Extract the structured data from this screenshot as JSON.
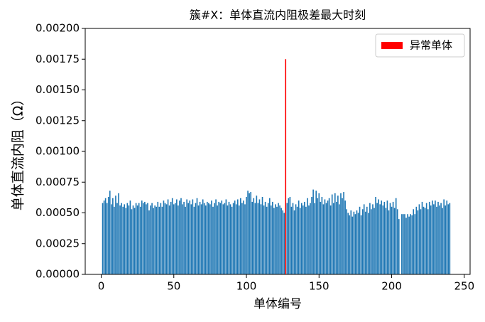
{
  "chart_data": {
    "type": "bar",
    "title": "簇#X：单体直流内阻极差最大时刻",
    "x_label": "单体编号",
    "y_label": "单体直流内阻（Ω）",
    "x": [
      1,
      2,
      3,
      4,
      5,
      6,
      7,
      8,
      9,
      10,
      11,
      12,
      13,
      14,
      15,
      16,
      17,
      18,
      19,
      20,
      21,
      22,
      23,
      24,
      25,
      26,
      27,
      28,
      29,
      30,
      31,
      32,
      33,
      34,
      35,
      36,
      37,
      38,
      39,
      40,
      41,
      42,
      43,
      44,
      45,
      46,
      47,
      48,
      49,
      50,
      51,
      52,
      53,
      54,
      55,
      56,
      57,
      58,
      59,
      60,
      61,
      62,
      63,
      64,
      65,
      66,
      67,
      68,
      69,
      70,
      71,
      72,
      73,
      74,
      75,
      76,
      77,
      78,
      79,
      80,
      81,
      82,
      83,
      84,
      85,
      86,
      87,
      88,
      89,
      90,
      91,
      92,
      93,
      94,
      95,
      96,
      97,
      98,
      99,
      100,
      101,
      102,
      103,
      104,
      105,
      106,
      107,
      108,
      109,
      110,
      111,
      112,
      113,
      114,
      115,
      116,
      117,
      118,
      119,
      120,
      121,
      122,
      123,
      124,
      125,
      126,
      127,
      128,
      129,
      130,
      131,
      132,
      133,
      134,
      135,
      136,
      137,
      138,
      139,
      140,
      141,
      142,
      143,
      144,
      145,
      146,
      147,
      148,
      149,
      150,
      151,
      152,
      153,
      154,
      155,
      156,
      157,
      158,
      159,
      160,
      161,
      162,
      163,
      164,
      165,
      166,
      167,
      168,
      169,
      170,
      171,
      172,
      173,
      174,
      175,
      176,
      177,
      178,
      179,
      180,
      181,
      182,
      183,
      184,
      185,
      186,
      187,
      188,
      189,
      190,
      191,
      192,
      193,
      194,
      195,
      196,
      197,
      198,
      199,
      200,
      201,
      202,
      203,
      204,
      205,
      206,
      207,
      208,
      209,
      210,
      211,
      212,
      213,
      214,
      215,
      216,
      217,
      218,
      219,
      220,
      221,
      222,
      223,
      224,
      225,
      226,
      227,
      228,
      229,
      230,
      231,
      232,
      233,
      234,
      235,
      236,
      237,
      238,
      239,
      240
    ],
    "series": [
      {
        "color": "#1f77b4",
        "values": [
          0.00058,
          0.0006,
          0.00062,
          0.00058,
          0.00063,
          0.00068,
          0.00057,
          0.00062,
          0.00055,
          0.00064,
          0.00058,
          0.00066,
          0.00056,
          0.00058,
          0.00055,
          0.00057,
          0.00054,
          0.00058,
          0.00056,
          0.0006,
          0.00053,
          0.00056,
          0.00054,
          0.00058,
          0.00056,
          0.00058,
          0.00055,
          0.0006,
          0.00058,
          0.00059,
          0.00057,
          0.00058,
          0.00052,
          0.00056,
          0.00058,
          0.00054,
          0.00056,
          0.00055,
          0.00059,
          0.00055,
          0.00058,
          0.00055,
          0.0006,
          0.00058,
          0.00057,
          0.00061,
          0.00056,
          0.00059,
          0.00062,
          0.00057,
          0.00058,
          0.00061,
          0.00056,
          0.0006,
          0.00062,
          0.00057,
          0.00059,
          0.00055,
          0.00061,
          0.00058,
          0.0006,
          0.00057,
          0.00061,
          0.00055,
          0.00058,
          0.00062,
          0.00056,
          0.00059,
          0.00057,
          0.00061,
          0.00058,
          0.00056,
          0.00059,
          0.00058,
          0.00057,
          0.0006,
          0.00055,
          0.00058,
          0.00061,
          0.00056,
          0.00059,
          0.00058,
          0.0006,
          0.00057,
          0.00058,
          0.00061,
          0.00056,
          0.00059,
          0.00057,
          0.00055,
          0.00058,
          0.0006,
          0.00057,
          0.00061,
          0.00056,
          0.00062,
          0.00058,
          0.0006,
          0.00057,
          0.00063,
          0.00068,
          0.00066,
          0.00067,
          0.00059,
          0.00062,
          0.00058,
          0.00064,
          0.00058,
          0.00061,
          0.00057,
          0.00063,
          0.00056,
          0.00059,
          0.00055,
          0.00058,
          0.00062,
          0.00056,
          0.00059,
          0.00054,
          0.00057,
          0.00055,
          0.00058,
          0.00056,
          0.00054,
          0.00052,
          0.0005,
          null,
          0.00058,
          0.00062,
          0.00063,
          0.00055,
          0.00058,
          0.00052,
          0.00057,
          0.00055,
          0.0006,
          0.00054,
          0.00058,
          0.00056,
          0.00059,
          0.00055,
          0.00062,
          0.00056,
          0.00058,
          0.00063,
          0.00069,
          0.00058,
          0.00068,
          0.00062,
          0.00066,
          0.00059,
          0.00063,
          0.00057,
          0.00061,
          0.00058,
          0.0006,
          0.00062,
          0.00056,
          0.00065,
          0.00058,
          0.00066,
          0.00059,
          0.00064,
          0.00057,
          0.00066,
          0.00062,
          0.00067,
          0.0006,
          0.00053,
          0.0005,
          0.00048,
          0.00052,
          0.00047,
          0.00051,
          0.00049,
          0.00052,
          0.0005,
          0.00055,
          0.00048,
          0.00053,
          0.00057,
          0.00051,
          0.00055,
          0.0005,
          0.00058,
          0.00053,
          0.00057,
          0.00054,
          0.00063,
          0.00058,
          0.00061,
          0.00057,
          0.0006,
          0.00056,
          0.00059,
          0.00054,
          0.0006,
          0.00052,
          0.00058,
          0.00055,
          0.00059,
          0.00054,
          0.00062,
          0.00053,
          0.00045,
          null,
          0.00049,
          0.00049,
          0.00049,
          0.00046,
          0.00049,
          0.00047,
          0.00049,
          0.00048,
          0.00053,
          0.00049,
          0.00055,
          0.00052,
          0.00057,
          0.00053,
          0.00059,
          0.00055,
          0.00054,
          0.00058,
          0.00053,
          0.00059,
          0.00056,
          0.0006,
          0.00057,
          0.0006,
          0.00055,
          0.00059,
          0.00056,
          0.00058,
          0.00054,
          0.00061,
          0.00056,
          0.0006,
          0.00057,
          0.00058
        ]
      },
      {
        "name": "异常单体",
        "color": "#ff0000",
        "x": [
          127
        ],
        "values": [
          0.00175
        ]
      }
    ],
    "xlim": [
      -11,
      254
    ],
    "ylim": [
      0,
      0.002
    ],
    "xticks": [
      0,
      50,
      100,
      150,
      200,
      250
    ],
    "yticks": [
      {
        "value": 0,
        "label": "0.00000"
      },
      {
        "value": 0.00025,
        "label": "0.00025"
      },
      {
        "value": 0.0005,
        "label": "0.00050"
      },
      {
        "value": 0.00075,
        "label": "0.00075"
      },
      {
        "value": 0.001,
        "label": "0.00100"
      },
      {
        "value": 0.00125,
        "label": "0.00125"
      },
      {
        "value": 0.0015,
        "label": "0.00150"
      },
      {
        "value": 0.00175,
        "label": "0.00175"
      },
      {
        "value": 0.002,
        "label": "0.00200"
      }
    ],
    "legend": "upper right"
  }
}
